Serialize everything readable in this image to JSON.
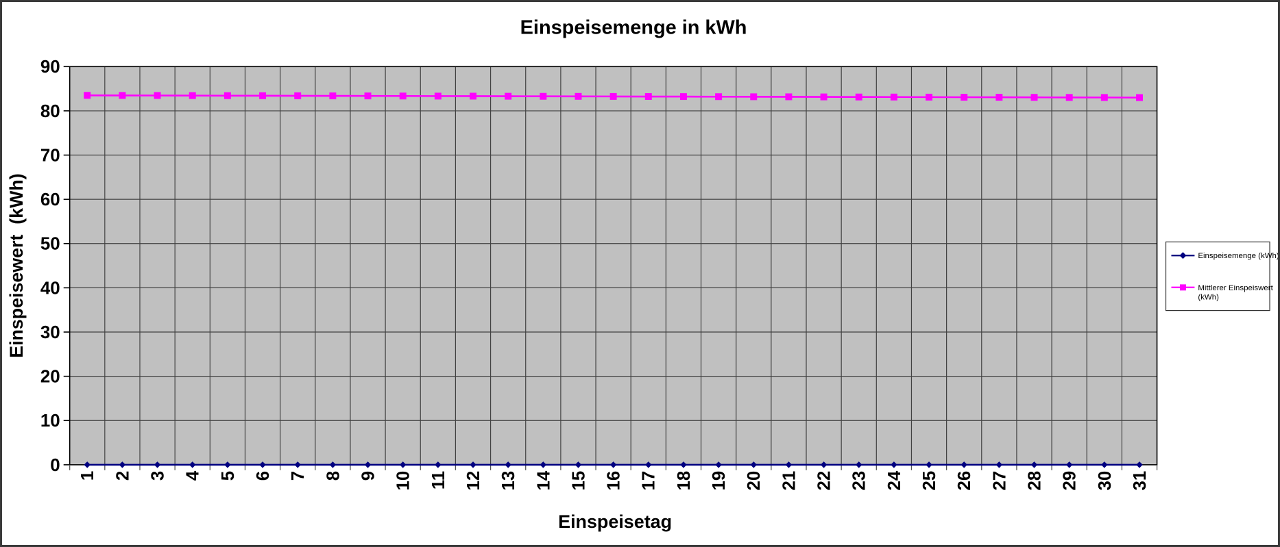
{
  "window": {
    "background": "#ffffff",
    "frame_color": "#3a3a3a"
  },
  "chart_data": {
    "type": "line",
    "title": "Einspeisemenge in kWh",
    "xlabel": "Einspeisetag",
    "ylabel": "Einspeisewert  (kWh)",
    "categories": [
      "1",
      "2",
      "3",
      "4",
      "5",
      "6",
      "7",
      "8",
      "9",
      "10",
      "11",
      "12",
      "13",
      "14",
      "15",
      "16",
      "17",
      "18",
      "19",
      "20",
      "21",
      "22",
      "23",
      "24",
      "25",
      "26",
      "27",
      "28",
      "29",
      "30",
      "31"
    ],
    "series": [
      {
        "name": "Einspeisemenge (kWh)",
        "color": "#000080",
        "marker": "diamond",
        "values": [
          0,
          0,
          0,
          0,
          0,
          0,
          0,
          0,
          0,
          0,
          0,
          0,
          0,
          0,
          0,
          0,
          0,
          0,
          0,
          0,
          0,
          0,
          0,
          0,
          0,
          0,
          0,
          0,
          0,
          0,
          0
        ]
      },
      {
        "name": "Mittlerer Einspeiswert (kWh)",
        "color": "#FF00FF",
        "marker": "square",
        "values": [
          83.5,
          83.48,
          83.47,
          83.45,
          83.43,
          83.42,
          83.4,
          83.38,
          83.37,
          83.35,
          83.33,
          83.32,
          83.3,
          83.28,
          83.27,
          83.25,
          83.23,
          83.22,
          83.2,
          83.18,
          83.17,
          83.15,
          83.13,
          83.12,
          83.1,
          83.08,
          83.07,
          83.05,
          83.03,
          83.02,
          83.0
        ]
      }
    ],
    "ylim": [
      0,
      90
    ],
    "ytick_step": 10,
    "yticks": [
      0,
      10,
      20,
      30,
      40,
      50,
      60,
      70,
      80,
      90
    ],
    "grid": {
      "horizontal": true,
      "vertical": true,
      "color": "#414141"
    },
    "plot_background": "#c0c0c0",
    "axis_color": "#000000",
    "legend_position": "right"
  },
  "legend": {
    "items": [
      {
        "label": "Einspeisemenge (kWh)",
        "color": "#000080",
        "marker": "diamond"
      },
      {
        "label_line1": "Mittlerer Einspeiswert",
        "label_line2": "(kWh)",
        "color": "#FF00FF",
        "marker": "square"
      }
    ]
  }
}
